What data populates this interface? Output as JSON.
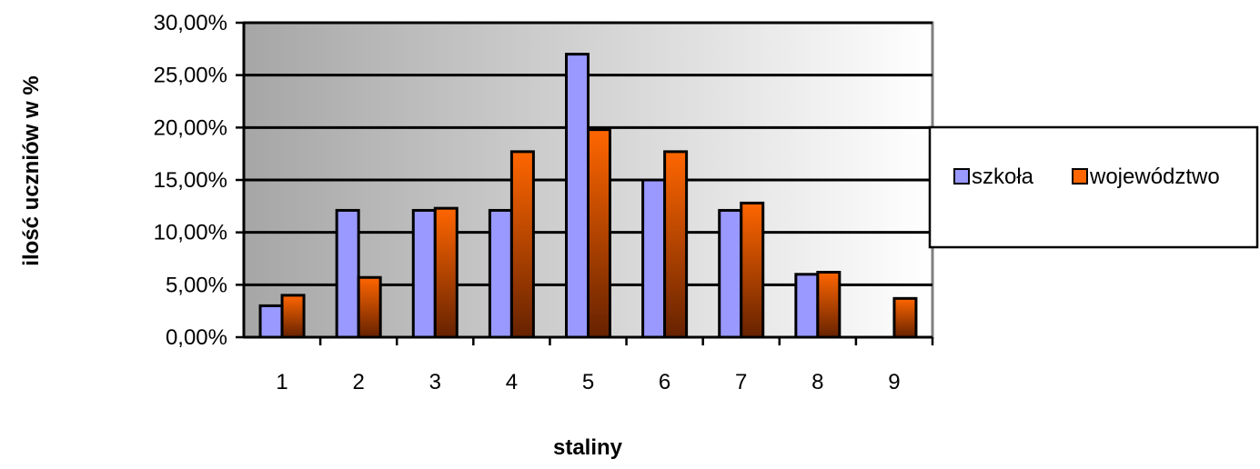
{
  "chart_data": {
    "type": "bar",
    "categories": [
      "1",
      "2",
      "3",
      "4",
      "5",
      "6",
      "7",
      "8",
      "9"
    ],
    "series": [
      {
        "name": "szkoła",
        "color": "#9999ff",
        "values": [
          3.0,
          12.1,
          12.1,
          12.1,
          27.0,
          15.0,
          12.1,
          6.0,
          0
        ]
      },
      {
        "name": "województwo",
        "color": "#ff6600",
        "values": [
          4.0,
          5.7,
          12.3,
          17.7,
          19.8,
          17.7,
          12.8,
          6.2,
          3.7
        ]
      }
    ],
    "xlabel": "staliny",
    "ylabel": "ilość uczniów w %",
    "ylim": [
      0,
      30
    ],
    "yticks": [
      0,
      5,
      10,
      15,
      20,
      25,
      30
    ],
    "ytick_labels": [
      "0,00%",
      "5,00%",
      "10,00%",
      "15,00%",
      "20,00%",
      "25,00%",
      "30,00%"
    ],
    "grid": true,
    "legend_position": "right",
    "plot_background": [
      "#a6a6a6",
      "#ffffff"
    ]
  }
}
